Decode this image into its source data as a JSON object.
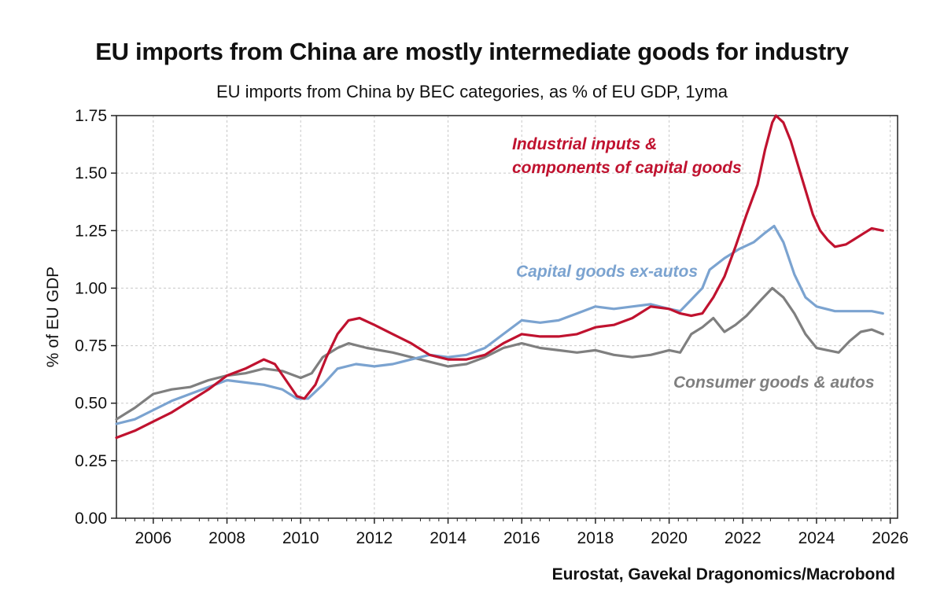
{
  "chart_data": {
    "type": "line",
    "title": "EU imports from China are mostly intermediate goods for industry",
    "subtitle": "EU imports from China by BEC categories, as % of EU GDP, 1yma",
    "ylabel": "% of EU GDP",
    "xlabel": "",
    "source": "Eurostat, Gavekal Dragonomics/Macrobond",
    "xlim": [
      2005.0,
      2026.2
    ],
    "ylim": [
      0,
      1.75
    ],
    "grid": true,
    "x_ticks": [
      2006,
      2008,
      2010,
      2012,
      2014,
      2016,
      2018,
      2020,
      2022,
      2024,
      2026
    ],
    "x_tick_labels": [
      "2006",
      "2008",
      "2010",
      "2012",
      "2014",
      "2016",
      "2018",
      "2020",
      "2022",
      "2024",
      "2026"
    ],
    "y_ticks": [
      0,
      0.25,
      0.5,
      0.75,
      1.0,
      1.25,
      1.5,
      1.75
    ],
    "y_tick_labels": [
      "0.00",
      "0.25",
      "0.50",
      "0.75",
      "1.00",
      "1.25",
      "1.50",
      "1.75"
    ],
    "series": [
      {
        "name": "Industrial inputs & components of capital goods",
        "label_lines": [
          "Industrial inputs &",
          "components of capital goods"
        ],
        "color": "#c0122f",
        "points": [
          [
            2005.0,
            0.35
          ],
          [
            2005.5,
            0.38
          ],
          [
            2006.0,
            0.42
          ],
          [
            2006.5,
            0.46
          ],
          [
            2007.0,
            0.51
          ],
          [
            2007.5,
            0.56
          ],
          [
            2008.0,
            0.62
          ],
          [
            2008.5,
            0.65
          ],
          [
            2009.0,
            0.69
          ],
          [
            2009.3,
            0.67
          ],
          [
            2009.6,
            0.6
          ],
          [
            2009.9,
            0.53
          ],
          [
            2010.1,
            0.52
          ],
          [
            2010.4,
            0.58
          ],
          [
            2010.7,
            0.7
          ],
          [
            2011.0,
            0.8
          ],
          [
            2011.3,
            0.86
          ],
          [
            2011.6,
            0.87
          ],
          [
            2012.0,
            0.84
          ],
          [
            2012.5,
            0.8
          ],
          [
            2013.0,
            0.76
          ],
          [
            2013.5,
            0.71
          ],
          [
            2014.0,
            0.69
          ],
          [
            2014.5,
            0.69
          ],
          [
            2015.0,
            0.71
          ],
          [
            2015.5,
            0.76
          ],
          [
            2016.0,
            0.8
          ],
          [
            2016.5,
            0.79
          ],
          [
            2017.0,
            0.79
          ],
          [
            2017.5,
            0.8
          ],
          [
            2018.0,
            0.83
          ],
          [
            2018.5,
            0.84
          ],
          [
            2019.0,
            0.87
          ],
          [
            2019.5,
            0.92
          ],
          [
            2020.0,
            0.91
          ],
          [
            2020.3,
            0.89
          ],
          [
            2020.6,
            0.88
          ],
          [
            2020.9,
            0.89
          ],
          [
            2021.2,
            0.96
          ],
          [
            2021.5,
            1.05
          ],
          [
            2021.8,
            1.18
          ],
          [
            2022.1,
            1.32
          ],
          [
            2022.4,
            1.45
          ],
          [
            2022.6,
            1.6
          ],
          [
            2022.8,
            1.72
          ],
          [
            2022.9,
            1.75
          ],
          [
            2023.1,
            1.72
          ],
          [
            2023.3,
            1.64
          ],
          [
            2023.6,
            1.48
          ],
          [
            2023.9,
            1.32
          ],
          [
            2024.1,
            1.25
          ],
          [
            2024.3,
            1.21
          ],
          [
            2024.5,
            1.18
          ],
          [
            2024.8,
            1.19
          ],
          [
            2025.0,
            1.21
          ],
          [
            2025.3,
            1.24
          ],
          [
            2025.5,
            1.26
          ],
          [
            2025.8,
            1.25
          ]
        ]
      },
      {
        "name": "Capital goods ex-autos",
        "label_lines": [
          "Capital goods ex-autos"
        ],
        "color": "#7ba3d0",
        "points": [
          [
            2005.0,
            0.41
          ],
          [
            2005.5,
            0.43
          ],
          [
            2006.0,
            0.47
          ],
          [
            2006.5,
            0.51
          ],
          [
            2007.0,
            0.54
          ],
          [
            2007.5,
            0.57
          ],
          [
            2008.0,
            0.6
          ],
          [
            2008.5,
            0.59
          ],
          [
            2009.0,
            0.58
          ],
          [
            2009.5,
            0.56
          ],
          [
            2009.9,
            0.52
          ],
          [
            2010.2,
            0.52
          ],
          [
            2010.6,
            0.58
          ],
          [
            2011.0,
            0.65
          ],
          [
            2011.5,
            0.67
          ],
          [
            2012.0,
            0.66
          ],
          [
            2012.5,
            0.67
          ],
          [
            2013.0,
            0.69
          ],
          [
            2013.5,
            0.71
          ],
          [
            2014.0,
            0.7
          ],
          [
            2014.5,
            0.71
          ],
          [
            2015.0,
            0.74
          ],
          [
            2015.5,
            0.8
          ],
          [
            2016.0,
            0.86
          ],
          [
            2016.5,
            0.85
          ],
          [
            2017.0,
            0.86
          ],
          [
            2017.5,
            0.89
          ],
          [
            2018.0,
            0.92
          ],
          [
            2018.5,
            0.91
          ],
          [
            2019.0,
            0.92
          ],
          [
            2019.5,
            0.93
          ],
          [
            2020.0,
            0.91
          ],
          [
            2020.3,
            0.9
          ],
          [
            2020.6,
            0.95
          ],
          [
            2020.9,
            1.0
          ],
          [
            2021.1,
            1.08
          ],
          [
            2021.5,
            1.13
          ],
          [
            2021.9,
            1.17
          ],
          [
            2022.3,
            1.2
          ],
          [
            2022.6,
            1.24
          ],
          [
            2022.85,
            1.27
          ],
          [
            2023.1,
            1.2
          ],
          [
            2023.4,
            1.06
          ],
          [
            2023.7,
            0.96
          ],
          [
            2024.0,
            0.92
          ],
          [
            2024.5,
            0.9
          ],
          [
            2025.0,
            0.9
          ],
          [
            2025.5,
            0.9
          ],
          [
            2025.8,
            0.89
          ]
        ]
      },
      {
        "name": "Consumer goods & autos",
        "label_lines": [
          "Consumer goods & autos"
        ],
        "color": "#7f7f7f",
        "points": [
          [
            2005.0,
            0.43
          ],
          [
            2005.5,
            0.48
          ],
          [
            2006.0,
            0.54
          ],
          [
            2006.5,
            0.56
          ],
          [
            2007.0,
            0.57
          ],
          [
            2007.5,
            0.6
          ],
          [
            2008.0,
            0.62
          ],
          [
            2008.5,
            0.63
          ],
          [
            2009.0,
            0.65
          ],
          [
            2009.5,
            0.64
          ],
          [
            2010.0,
            0.61
          ],
          [
            2010.3,
            0.63
          ],
          [
            2010.6,
            0.7
          ],
          [
            2011.0,
            0.74
          ],
          [
            2011.3,
            0.76
          ],
          [
            2011.8,
            0.74
          ],
          [
            2012.5,
            0.72
          ],
          [
            2013.0,
            0.7
          ],
          [
            2013.5,
            0.68
          ],
          [
            2014.0,
            0.66
          ],
          [
            2014.5,
            0.67
          ],
          [
            2015.0,
            0.7
          ],
          [
            2015.5,
            0.74
          ],
          [
            2016.0,
            0.76
          ],
          [
            2016.5,
            0.74
          ],
          [
            2017.0,
            0.73
          ],
          [
            2017.5,
            0.72
          ],
          [
            2018.0,
            0.73
          ],
          [
            2018.5,
            0.71
          ],
          [
            2019.0,
            0.7
          ],
          [
            2019.5,
            0.71
          ],
          [
            2020.0,
            0.73
          ],
          [
            2020.3,
            0.72
          ],
          [
            2020.6,
            0.8
          ],
          [
            2020.9,
            0.83
          ],
          [
            2021.2,
            0.87
          ],
          [
            2021.5,
            0.81
          ],
          [
            2021.8,
            0.84
          ],
          [
            2022.1,
            0.88
          ],
          [
            2022.5,
            0.95
          ],
          [
            2022.8,
            1.0
          ],
          [
            2023.1,
            0.96
          ],
          [
            2023.4,
            0.89
          ],
          [
            2023.7,
            0.8
          ],
          [
            2024.0,
            0.74
          ],
          [
            2024.3,
            0.73
          ],
          [
            2024.6,
            0.72
          ],
          [
            2024.9,
            0.77
          ],
          [
            2025.2,
            0.81
          ],
          [
            2025.5,
            0.82
          ],
          [
            2025.8,
            0.8
          ]
        ]
      }
    ]
  },
  "header": {
    "title": "EU imports from China are mostly intermediate goods for industry",
    "subtitle": "EU imports from China by BEC categories, as % of EU GDP, 1yma"
  },
  "footer": {
    "source": "Eurostat, Gavekal Dragonomics/Macrobond"
  }
}
